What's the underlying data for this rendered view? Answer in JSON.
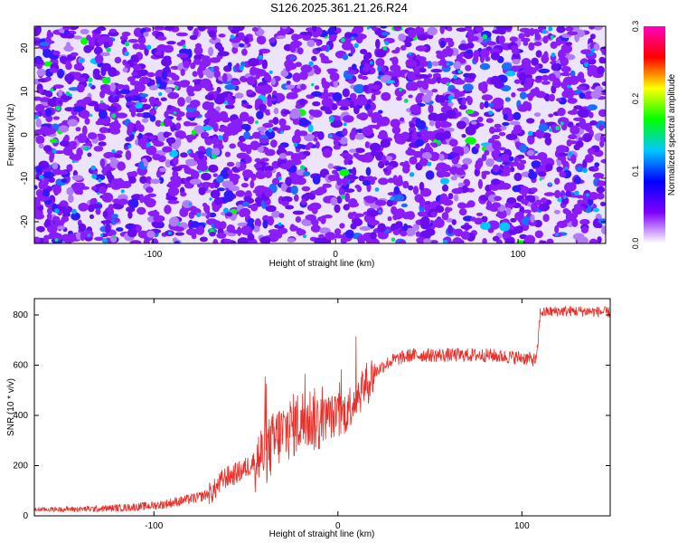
{
  "page_title": "S126.2025.361.21.26.R24",
  "chart_data": [
    {
      "type": "heatmap",
      "title": "S126.2025.361.21.26.R24",
      "xlabel": "Height of straight line (km)",
      "ylabel": "Frequency (Hz)",
      "xlim": [
        -165,
        148
      ],
      "ylim": [
        -25,
        25
      ],
      "xticks": [
        -100,
        0,
        100
      ],
      "yticks": [
        -20,
        -10,
        0,
        10,
        20
      ],
      "colorbar": {
        "label": "Normalized spectral amplitude",
        "range": [
          0.0,
          0.3
        ],
        "ticks": [
          0.0,
          0.1,
          0.2,
          0.3
        ],
        "colors": [
          "#ffffff",
          "#8000ff",
          "#0000ff",
          "#00c8ff",
          "#00ff00",
          "#ffff00",
          "#ff0000",
          "#ff00c0"
        ]
      }
    },
    {
      "type": "line",
      "xlabel": "Height of straight line (km)",
      "ylabel": "SNR (10 * v/v)",
      "xlim": [
        -165,
        148
      ],
      "ylim": [
        0,
        865
      ],
      "xticks": [
        -100,
        0,
        100
      ],
      "yticks": [
        0,
        200,
        400,
        600,
        800
      ],
      "color": "#e8302a",
      "series": [
        {
          "name": "SNR",
          "x": [
            -165,
            -130,
            -110,
            -95,
            -85,
            -75,
            -68,
            -62,
            -58,
            -52,
            -45,
            -38,
            -32,
            -26,
            -20,
            -15,
            -10,
            -5,
            0,
            5,
            10,
            15,
            20,
            25,
            30,
            40,
            60,
            80,
            100,
            108,
            110,
            120,
            135,
            148
          ],
          "y": [
            25,
            28,
            35,
            45,
            60,
            75,
            95,
            150,
            160,
            180,
            220,
            260,
            320,
            350,
            380,
            390,
            370,
            400,
            390,
            420,
            480,
            520,
            570,
            600,
            620,
            640,
            640,
            640,
            630,
            620,
            810,
            815,
            815,
            810
          ]
        }
      ]
    }
  ]
}
